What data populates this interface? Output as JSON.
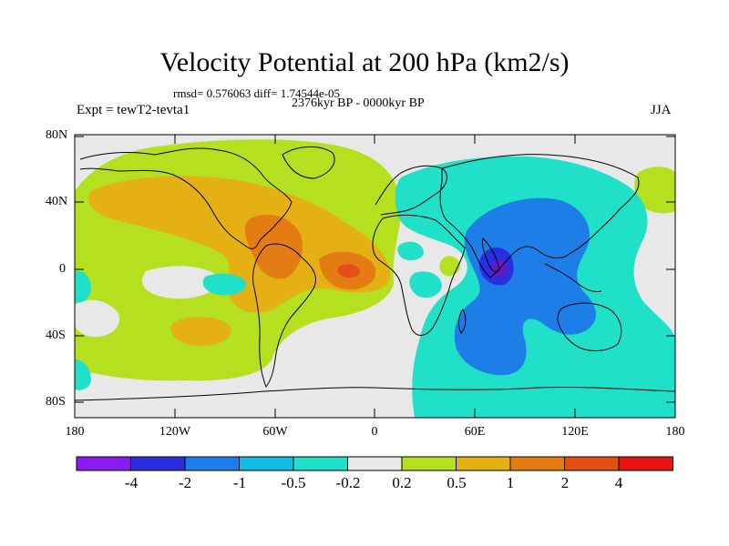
{
  "title": "Velocity Potential at 200 hPa (km2/s)",
  "stats": "rmsd= 0.576063 diff= 1.74544e-05",
  "period": "2376kyr BP - 0000kyr BP",
  "expt": "Expt = tewT2-tevta1",
  "season": "JJA",
  "map": {
    "lat_ticks": [
      "80N",
      "40N",
      "0",
      "40S",
      "80S"
    ],
    "lon_ticks": [
      "180",
      "120W",
      "60W",
      "0",
      "60E",
      "120E",
      "180"
    ]
  },
  "colorbar": {
    "labels": [
      "-4",
      "-2",
      "-1",
      "-0.5",
      "-0.2",
      "0.2",
      "0.5",
      "1",
      "2",
      "4"
    ],
    "colors": [
      "#8a1cf0",
      "#2a2ee0",
      "#1e7ee8",
      "#16bce8",
      "#20e0c8",
      "#e8e8e8",
      "#b4e020",
      "#e4b014",
      "#e47c14",
      "#e45014",
      "#e81414"
    ]
  },
  "palette": {
    "green": "#b4e020",
    "orange1": "#e4b014",
    "orange2": "#e47c14",
    "red": "#e45014",
    "cyan": "#20e0c8",
    "blue1": "#1e7ee8",
    "blue2": "#2a2ee0",
    "neutral": "#e8e8e8"
  }
}
